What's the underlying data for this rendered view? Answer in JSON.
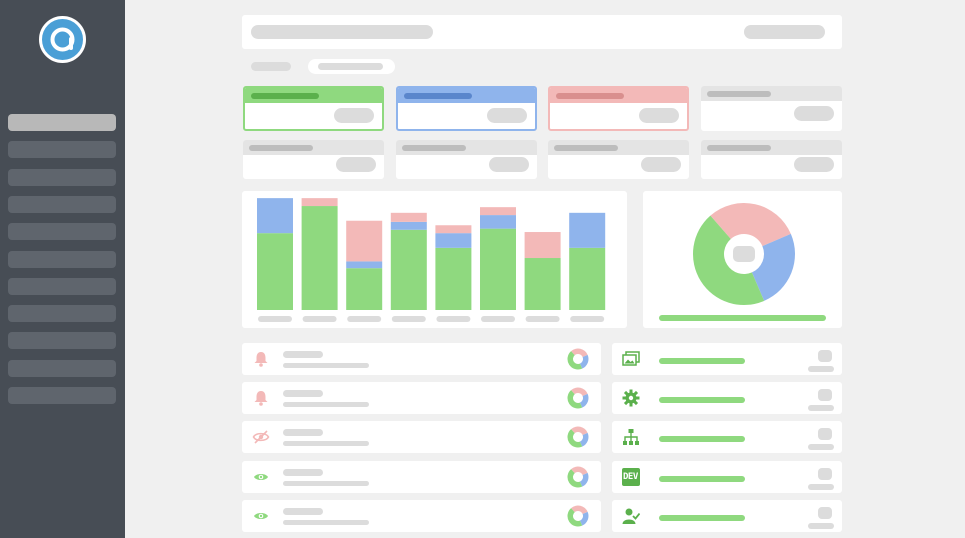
{
  "sidebar": {
    "logo_icon": "chat-bubble-logo-icon",
    "nav_count": 11,
    "active_index": 0
  },
  "colors": {
    "green": "#8fd97f",
    "blue": "#8fb4ec",
    "red": "#f3b9b8",
    "gray": "#dcdcdc",
    "sidebar": "#474d55",
    "accent": "#4a9fd6"
  },
  "stat_cards": [
    {
      "accent": "green"
    },
    {
      "accent": "blue"
    },
    {
      "accent": "red"
    },
    {
      "accent": "gray"
    },
    {
      "accent": "gray"
    },
    {
      "accent": "gray"
    },
    {
      "accent": "gray"
    },
    {
      "accent": "gray"
    }
  ],
  "chart_data": [
    {
      "type": "bar",
      "stacked": true,
      "ylim": [
        0,
        100
      ],
      "categories": [
        "",
        "",
        "",
        "",
        "",
        "",
        "",
        ""
      ],
      "series": [
        {
          "color": "#8fd97f",
          "values": [
            68,
            92,
            37,
            71,
            55,
            72,
            46,
            55
          ]
        },
        {
          "color": "#8fb4ec",
          "values": [
            31,
            0,
            6,
            7,
            13,
            12,
            0,
            31
          ]
        },
        {
          "color": "#f3b9b8",
          "values": [
            0,
            7,
            36,
            8,
            7,
            7,
            23,
            0
          ]
        }
      ]
    },
    {
      "type": "pie",
      "donut": true,
      "slices": [
        {
          "color": "#f3b9b8",
          "value": 0.3
        },
        {
          "color": "#8fb4ec",
          "value": 0.25
        },
        {
          "color": "#8fd97f",
          "value": 0.45
        }
      ]
    }
  ],
  "alerts": [
    {
      "icon": "bell-icon",
      "color": "#f3b9b8"
    },
    {
      "icon": "bell-icon",
      "color": "#f3b9b8"
    },
    {
      "icon": "eye-slash-icon",
      "color": "#f3b9b8"
    },
    {
      "icon": "eye-icon",
      "color": "#8fd97f"
    },
    {
      "icon": "eye-icon",
      "color": "#8fd97f"
    }
  ],
  "services": [
    {
      "icon": "images-icon",
      "label": ""
    },
    {
      "icon": "gear-icon",
      "label": ""
    },
    {
      "icon": "sitemap-icon",
      "label": ""
    },
    {
      "icon": "dev-badge-icon",
      "label": "DEV"
    },
    {
      "icon": "user-check-icon",
      "label": ""
    }
  ]
}
